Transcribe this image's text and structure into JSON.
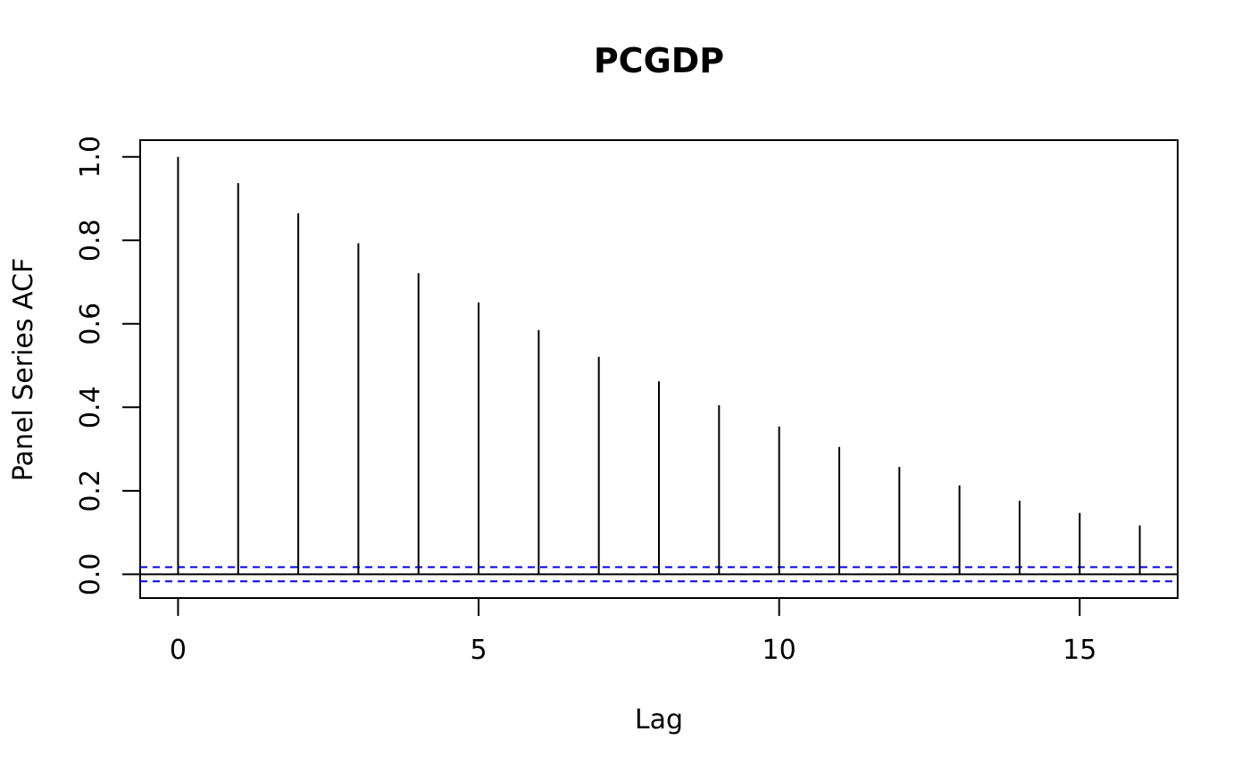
{
  "chart_data": {
    "type": "bar",
    "title": "PCGDP",
    "xlabel": "Lag",
    "ylabel": "Panel Series ACF",
    "x": [
      0,
      1,
      2,
      3,
      4,
      5,
      6,
      7,
      8,
      9,
      10,
      11,
      12,
      13,
      14,
      15,
      16
    ],
    "values": [
      1.0,
      0.937,
      0.865,
      0.793,
      0.721,
      0.651,
      0.585,
      0.521,
      0.462,
      0.405,
      0.354,
      0.305,
      0.257,
      0.213,
      0.176,
      0.147,
      0.117
    ],
    "xlim": [
      -0.63,
      16.63
    ],
    "ylim": [
      -0.057,
      1.04
    ],
    "xticks": [
      0,
      5,
      10,
      15
    ],
    "xtick_labels": [
      "0",
      "5",
      "10",
      "15"
    ],
    "yticks": [
      0.0,
      0.2,
      0.4,
      0.6,
      0.8,
      1.0
    ],
    "ytick_labels": [
      "0.0",
      "0.2",
      "0.4",
      "0.6",
      "0.8",
      "1.0"
    ],
    "confidence_bounds": [
      0.017,
      -0.017
    ],
    "zero_line": 0,
    "grid": false,
    "colors": {
      "bars": "#000000",
      "confidence": "#0000ff",
      "axes": "#000000",
      "background": "#ffffff"
    }
  }
}
